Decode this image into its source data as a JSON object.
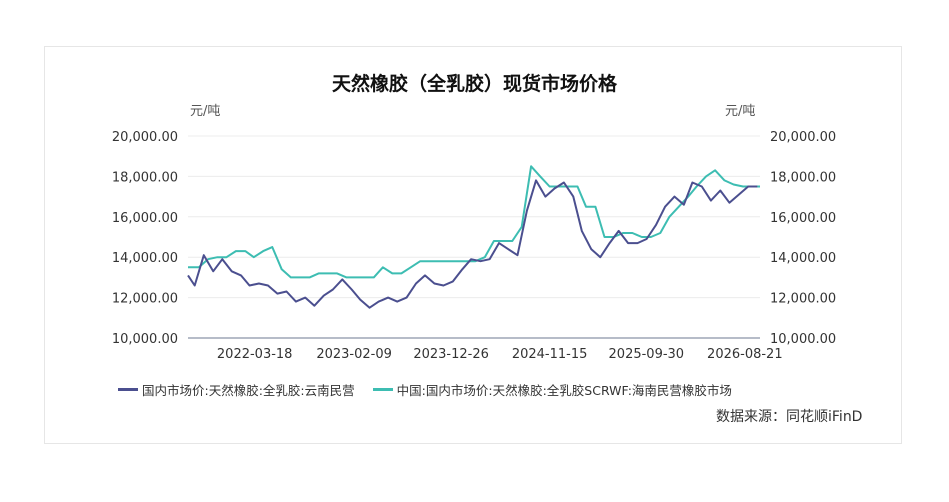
{
  "chart_data": {
    "type": "line",
    "title": "天然橡胶（全乳胶）现货市场价格",
    "y_unit_left": "元/吨",
    "y_unit_right": "元/吨",
    "ylim": [
      10000,
      20000
    ],
    "y_ticks": [
      "20,000.00",
      "18,000.00",
      "16,000.00",
      "14,000.00",
      "12,000.00",
      "10,000.00"
    ],
    "y_tick_values": [
      20000,
      18000,
      16000,
      14000,
      12000,
      10000
    ],
    "x_tick_labels": [
      "2022-03-18",
      "2023-02-09",
      "2023-12-26",
      "2024-11-15",
      "2025-09-30",
      "2026-08-21"
    ],
    "x_range": [
      "2021-08-10",
      "2026-10-10"
    ],
    "grid": true,
    "legend_position": "bottom",
    "series": [
      {
        "name": "国内市场价:天然橡胶:全乳胶:云南民营",
        "color": "#4b4f8f",
        "x": [
          "2021-08-10",
          "2021-09-01",
          "2021-10-01",
          "2021-11-01",
          "2021-12-01",
          "2022-01-01",
          "2022-02-01",
          "2022-03-01",
          "2022-04-01",
          "2022-05-01",
          "2022-06-01",
          "2022-07-01",
          "2022-08-01",
          "2022-09-01",
          "2022-10-01",
          "2022-11-01",
          "2022-12-01",
          "2023-01-01",
          "2023-02-01",
          "2023-03-01",
          "2023-04-01",
          "2023-05-01",
          "2023-06-01",
          "2023-07-01",
          "2023-08-01",
          "2023-09-01",
          "2023-10-01",
          "2023-11-01",
          "2023-12-01",
          "2024-01-01",
          "2024-02-01",
          "2024-03-01",
          "2024-04-01",
          "2024-05-01",
          "2024-06-01",
          "2024-07-01",
          "2024-08-01",
          "2024-09-01",
          "2024-10-01",
          "2024-11-01",
          "2024-12-01",
          "2025-01-01",
          "2025-02-01",
          "2025-03-01",
          "2025-04-01",
          "2025-05-01",
          "2025-06-01",
          "2025-07-01",
          "2025-08-01",
          "2025-09-01",
          "2025-10-01",
          "2025-11-01",
          "2025-12-01",
          "2026-01-01",
          "2026-02-01",
          "2026-03-01",
          "2026-04-01",
          "2026-05-01",
          "2026-06-01",
          "2026-07-01",
          "2026-08-01",
          "2026-09-01",
          "2026-10-01"
        ],
        "values": [
          13100,
          12600,
          14100,
          13300,
          13900,
          13300,
          13100,
          12600,
          12700,
          12600,
          12200,
          12300,
          11800,
          12000,
          11600,
          12100,
          12400,
          12900,
          12400,
          11900,
          11500,
          11800,
          12000,
          11800,
          12000,
          12700,
          13100,
          12700,
          12600,
          12800,
          13400,
          13900,
          13800,
          13900,
          14700,
          14400,
          14100,
          16300,
          17800,
          17000,
          17400,
          17700,
          17000,
          15300,
          14400,
          14000,
          14700,
          15300,
          14700,
          14700,
          14900,
          15600,
          16500,
          17000,
          16600,
          17700,
          17500,
          16800,
          17300,
          16700,
          17100,
          17500,
          17500
        ]
      },
      {
        "name": "中国:国内市场价:天然橡胶:全乳胶SCRWF:海南民营橡胶市场",
        "color": "#3dbdb2",
        "x": [
          "2021-08-10",
          "2021-09-15",
          "2021-10-15",
          "2021-11-15",
          "2021-12-15",
          "2022-01-15",
          "2022-02-15",
          "2022-03-15",
          "2022-04-15",
          "2022-05-15",
          "2022-06-15",
          "2022-07-15",
          "2022-08-15",
          "2022-09-15",
          "2022-10-15",
          "2022-11-15",
          "2022-12-15",
          "2023-01-15",
          "2023-02-15",
          "2023-03-15",
          "2023-04-15",
          "2023-05-15",
          "2023-06-15",
          "2023-07-15",
          "2023-08-15",
          "2023-09-15",
          "2023-10-15",
          "2023-11-15",
          "2023-12-15",
          "2024-01-15",
          "2024-02-15",
          "2024-03-15",
          "2024-04-15",
          "2024-05-15",
          "2024-06-15",
          "2024-07-15",
          "2024-08-15",
          "2024-09-15",
          "2024-10-15",
          "2024-11-15",
          "2024-12-15",
          "2025-01-15",
          "2025-02-15",
          "2025-03-15",
          "2025-04-15",
          "2025-05-15",
          "2025-06-15",
          "2025-07-15",
          "2025-08-15",
          "2025-09-15",
          "2025-10-15",
          "2025-11-15",
          "2025-12-15",
          "2026-01-15",
          "2026-02-15",
          "2026-03-15",
          "2026-04-15",
          "2026-05-15",
          "2026-06-15",
          "2026-07-15",
          "2026-08-15",
          "2026-09-15",
          "2026-10-10"
        ],
        "values": [
          13500,
          13500,
          13900,
          14000,
          14000,
          14300,
          14300,
          14000,
          14300,
          14500,
          13400,
          13000,
          13000,
          13000,
          13200,
          13200,
          13200,
          13000,
          13000,
          13000,
          13000,
          13500,
          13200,
          13200,
          13500,
          13800,
          13800,
          13800,
          13800,
          13800,
          13800,
          13800,
          14000,
          14800,
          14800,
          14800,
          15500,
          18500,
          18000,
          17500,
          17500,
          17500,
          17500,
          16500,
          16500,
          15000,
          15000,
          15200,
          15200,
          15000,
          15000,
          15200,
          16000,
          16500,
          17000,
          17500,
          18000,
          18300,
          17800,
          17600,
          17500,
          17500,
          17500
        ]
      }
    ]
  },
  "legend": [
    {
      "label": "国内市场价:天然橡胶:全乳胶:云南民营",
      "color": "#4b4f8f"
    },
    {
      "label": "中国:国内市场价:天然橡胶:全乳胶SCRWF:海南民营橡胶市场",
      "color": "#3dbdb2"
    }
  ],
  "source": "数据来源：同花顺iFinD"
}
